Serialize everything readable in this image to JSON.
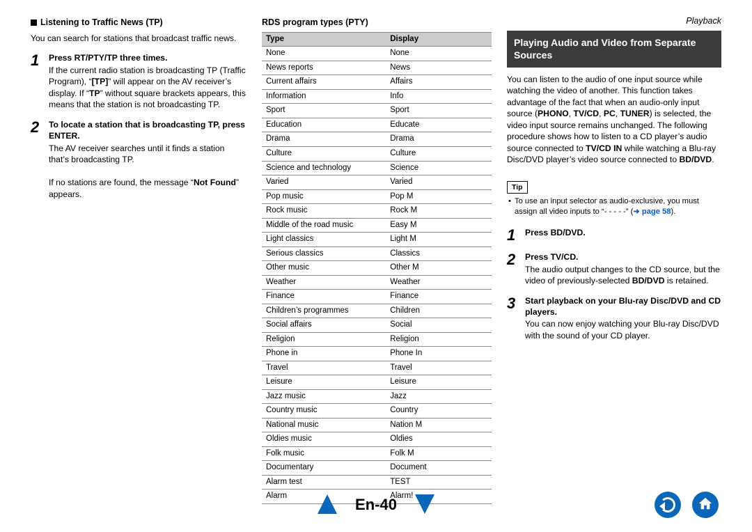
{
  "header": {
    "category": "Playback"
  },
  "col1": {
    "section_title": "Listening to Traffic News (TP)",
    "intro": "You can search for stations that broadcast traffic news.",
    "steps": [
      {
        "num": "1",
        "title": "Press RT/PTY/TP three times.",
        "body_html": "If the current radio station is broadcasting TP (Traffic Program), “<span class='b'>[TP]</span>” will appear on the AV receiver’s display. If “<span class='b'>TP</span>” without square brackets appears, this means that the station is not broadcasting TP."
      },
      {
        "num": "2",
        "title": "To locate a station that is broadcasting TP, press ENTER.",
        "body_html": "The AV receiver searches until it finds a station that’s broadcasting TP.<br><br>If no stations are found, the message “<span class='b'>Not Found</span>” appears."
      }
    ]
  },
  "col2": {
    "heading": "RDS program types (PTY)",
    "table": {
      "headers": [
        "Type",
        "Display"
      ],
      "rows": [
        [
          "None",
          "None"
        ],
        [
          "News reports",
          "News"
        ],
        [
          "Current affairs",
          "Affairs"
        ],
        [
          "Information",
          "Info"
        ],
        [
          "Sport",
          "Sport"
        ],
        [
          "Education",
          "Educate"
        ],
        [
          "Drama",
          "Drama"
        ],
        [
          "Culture",
          "Culture"
        ],
        [
          "Science and technology",
          "Science"
        ],
        [
          "Varied",
          "Varied"
        ],
        [
          "Pop music",
          "Pop M"
        ],
        [
          "Rock music",
          "Rock M"
        ],
        [
          "Middle of the road music",
          "Easy M"
        ],
        [
          "Light classics",
          "Light M"
        ],
        [
          "Serious classics",
          "Classics"
        ],
        [
          "Other music",
          "Other M"
        ],
        [
          "Weather",
          "Weather"
        ],
        [
          "Finance",
          "Finance"
        ],
        [
          "Children’s programmes",
          "Children"
        ],
        [
          "Social affairs",
          "Social"
        ],
        [
          "Religion",
          "Religion"
        ],
        [
          "Phone in",
          "Phone In"
        ],
        [
          "Travel",
          "Travel"
        ],
        [
          "Leisure",
          "Leisure"
        ],
        [
          "Jazz music",
          "Jazz"
        ],
        [
          "Country music",
          "Country"
        ],
        [
          "National music",
          "Nation M"
        ],
        [
          "Oldies music",
          "Oldies"
        ],
        [
          "Folk music",
          "Folk M"
        ],
        [
          "Documentary",
          "Document"
        ],
        [
          "Alarm test",
          "TEST"
        ],
        [
          "Alarm",
          "Alarm!"
        ]
      ]
    }
  },
  "col3": {
    "bar_title": "Playing Audio and Video from Separate Sources",
    "para_html": "You can listen to the audio of one input source while watching the video of another. This function takes advantage of the fact that when an audio-only input source (<span class='b'>PHONO</span>, <span class='b'>TV/CD</span>, <span class='b'>PC</span>, <span class='b'>TUNER</span>) is selected, the video input source remains unchanged. The following procedure shows how to listen to a CD player’s audio source connected to <span class='b'>TV/CD IN</span> while watching a Blu-ray Disc/DVD player’s video source connected to <span class='b'>BD/DVD</span>.",
    "tip_label": "Tip",
    "tip_html": "To use an input selector as audio-exclusive, you must assign all video inputs to “- - - - -” (<span class='linkish'>➜ page 58</span>).",
    "steps": [
      {
        "num": "1",
        "title": "Press BD/DVD.",
        "body_html": ""
      },
      {
        "num": "2",
        "title": "Press TV/CD.",
        "body_html": "The audio output changes to the CD source, but the video of previously-selected <span class='b'>BD/DVD</span> is retained."
      },
      {
        "num": "3",
        "title": "Start playback on your Blu-ray Disc/DVD and CD players.",
        "body_html": "You can now enjoy watching your Blu-ray Disc/DVD with the sound of your CD player."
      }
    ]
  },
  "footer": {
    "page_label": "En-40"
  }
}
